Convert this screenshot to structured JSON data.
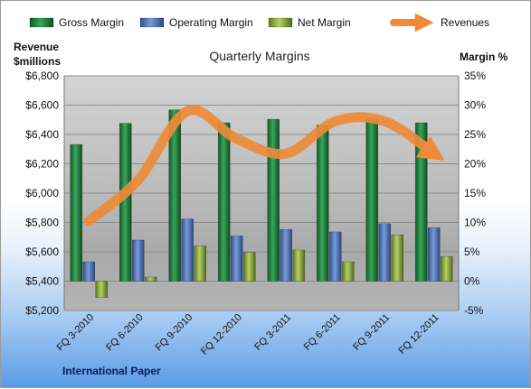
{
  "chart_data": {
    "type": "bar",
    "title": "Quarterly Margins",
    "footer": "International Paper",
    "y_left_label_1": "Revenue",
    "y_left_label_2": "$millions",
    "y_right_label": "Margin %",
    "categories": [
      "FQ 3-2010",
      "FQ 6-2010",
      "FQ 9-2010",
      "FQ 12-2010",
      "FQ 3-2011",
      "FQ 6-2011",
      "FQ 9-2011",
      "FQ 12-2011"
    ],
    "y_left_ticks": [
      "$5,200",
      "$5,400",
      "$5,600",
      "$5,800",
      "$6,000",
      "$6,200",
      "$6,400",
      "$6,600",
      "$6,800"
    ],
    "y_right_ticks": [
      "-5%",
      "0%",
      "5%",
      "10%",
      "15%",
      "20%",
      "25%",
      "30%",
      "35%"
    ],
    "ylim_left": [
      5200,
      6800
    ],
    "ylim_right": [
      -5,
      35
    ],
    "series": [
      {
        "name": "Gross Margin",
        "axis": "right",
        "color": "#1f7a3c",
        "values": [
          23.3,
          26.9,
          29.2,
          27.0,
          27.6,
          26.6,
          27.8,
          27.0
        ]
      },
      {
        "name": "Operating Margin",
        "axis": "right",
        "color": "#4a6fb5",
        "values": [
          3.3,
          7.0,
          10.6,
          7.7,
          8.8,
          8.4,
          9.8,
          9.1
        ]
      },
      {
        "name": "Net Margin",
        "axis": "right",
        "color": "#8aa63a",
        "values": [
          -2.8,
          0.7,
          6.0,
          4.9,
          5.3,
          3.3,
          7.9,
          4.2
        ]
      },
      {
        "name": "Revenues",
        "axis": "left",
        "color": "#ee8a3a",
        "type": "line",
        "values": [
          5810,
          6090,
          6560,
          6370,
          6270,
          6490,
          6490,
          6270
        ]
      }
    ],
    "legend_position": "top",
    "grid": true
  }
}
